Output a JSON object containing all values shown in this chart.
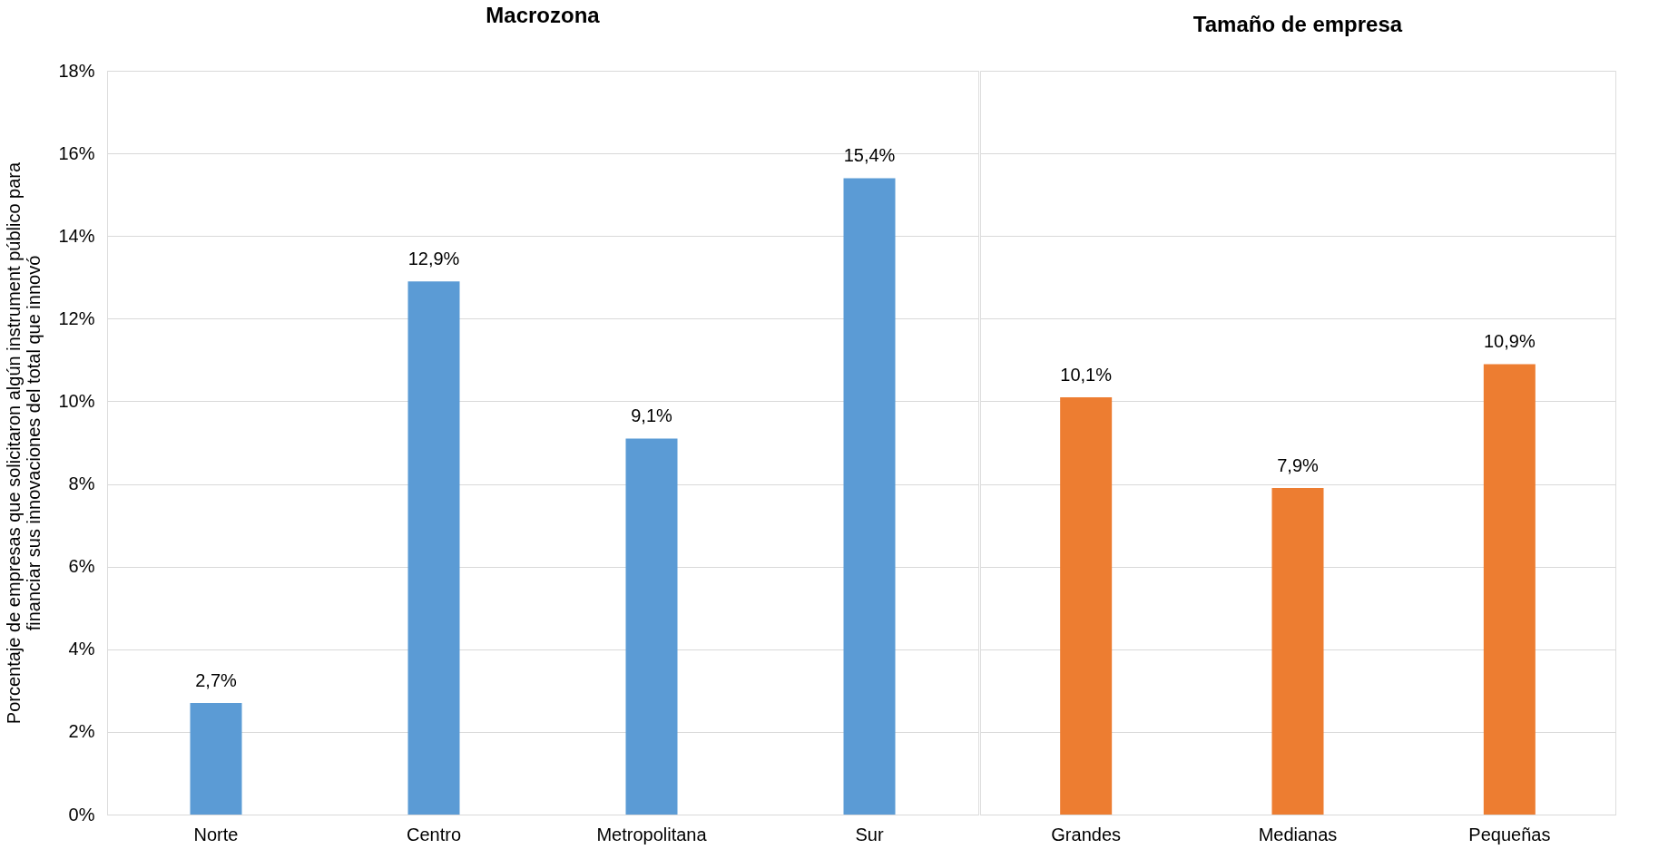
{
  "chart_data": [
    {
      "type": "bar",
      "title": "Macrozona",
      "ylabel": "Porcentaje de empresas que solicitaron algún instrument público para\nfinanciar sus innovaciones del total que innovó",
      "categories": [
        "Norte",
        "Centro",
        "Metropolitana",
        "Sur"
      ],
      "values": [
        2.7,
        12.9,
        9.1,
        15.4
      ],
      "color": "#5b9bd5",
      "value_labels": [
        "2,7%",
        "12,9%",
        "9,1%",
        "15,4%"
      ],
      "ylim": [
        0,
        18
      ],
      "yticks": [
        {
          "value": 0,
          "label": "0%"
        },
        {
          "value": 2,
          "label": "2%"
        },
        {
          "value": 4,
          "label": "4%"
        },
        {
          "value": 6,
          "label": "6%"
        },
        {
          "value": 8,
          "label": "8%"
        },
        {
          "value": 10,
          "label": "10%"
        },
        {
          "value": 12,
          "label": "12%"
        },
        {
          "value": 14,
          "label": "14%"
        },
        {
          "value": 16,
          "label": "16%"
        },
        {
          "value": 18,
          "label": "18%"
        }
      ],
      "grid": "y"
    },
    {
      "type": "bar",
      "title": "Tamaño de empresa",
      "categories": [
        "Grandes",
        "Medianas",
        "Pequeñas"
      ],
      "values": [
        10.1,
        7.9,
        10.9
      ],
      "color": "#ed7d31",
      "value_labels": [
        "10,1%",
        "7,9%",
        "10,9%"
      ],
      "ylim": [
        0,
        18
      ],
      "yticks": [
        {
          "value": 0,
          "label": null
        },
        {
          "value": 2,
          "label": null
        },
        {
          "value": 4,
          "label": null
        },
        {
          "value": 6,
          "label": null
        },
        {
          "value": 8,
          "label": null
        },
        {
          "value": 10,
          "label": null
        },
        {
          "value": 12,
          "label": null
        },
        {
          "value": 14,
          "label": null
        },
        {
          "value": 16,
          "label": null
        },
        {
          "value": 18,
          "label": null
        }
      ],
      "grid": "y",
      "tick_labels": "x"
    }
  ]
}
